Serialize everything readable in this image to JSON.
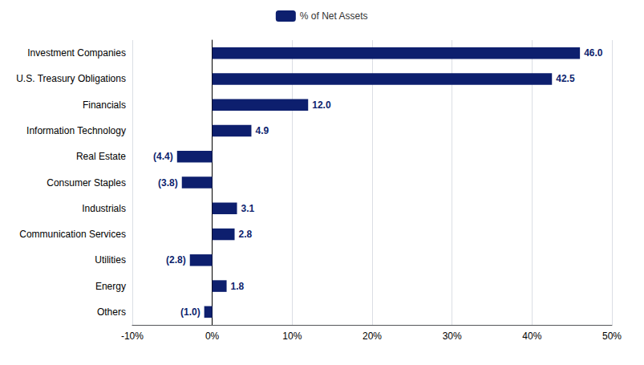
{
  "chart_data": {
    "type": "bar",
    "orientation": "horizontal",
    "categories": [
      "Investment Companies",
      "U.S. Treasury Obligations",
      "Financials",
      "Information Technology",
      "Real Estate",
      "Consumer Staples",
      "Industrials",
      "Communication Services",
      "Utilities",
      "Energy",
      "Others"
    ],
    "series": [
      {
        "name": "% of Net Assets",
        "color": "#0d1f6e",
        "values": [
          46.0,
          42.5,
          12.0,
          4.9,
          -4.4,
          -3.8,
          3.1,
          2.8,
          -2.8,
          1.8,
          -1.0
        ],
        "value_labels": [
          "46.0",
          "42.5",
          "12.0",
          "4.9",
          "(4.4)",
          "(3.8)",
          "3.1",
          "2.8",
          "(2.8)",
          "1.8",
          "(1.0)"
        ]
      }
    ],
    "xlim": [
      -10,
      50
    ],
    "xticks": [
      {
        "value": -10,
        "label": "-10%"
      },
      {
        "value": 0,
        "label": "0%"
      },
      {
        "value": 10,
        "label": "10%"
      },
      {
        "value": 20,
        "label": "20%"
      },
      {
        "value": 30,
        "label": "30%"
      },
      {
        "value": 40,
        "label": "40%"
      },
      {
        "value": 50,
        "label": "50%"
      }
    ],
    "grid": true,
    "legend": "top",
    "data_labels": true
  }
}
